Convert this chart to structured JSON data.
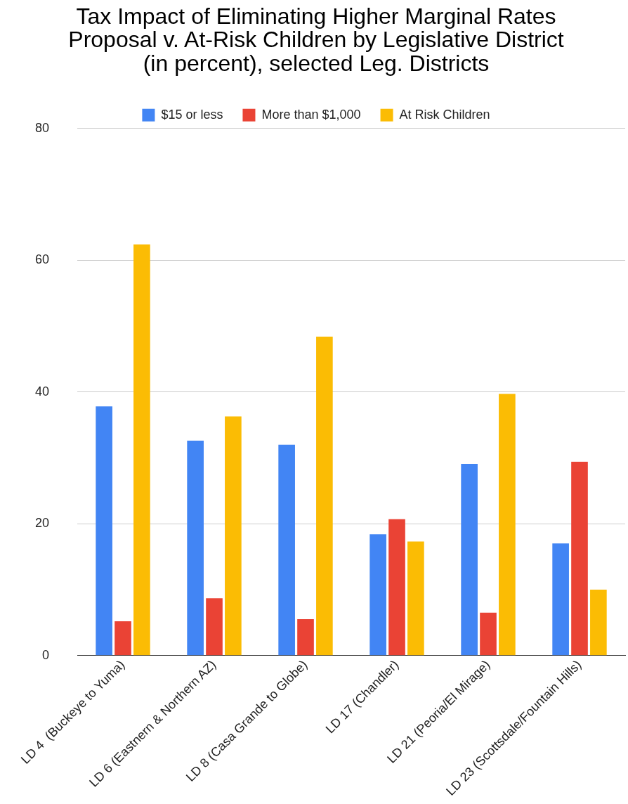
{
  "chart_data": {
    "type": "bar",
    "title": "Tax Impact of Eliminating Higher Marginal Rates\nProposal v. At-Risk Children by Legislative District\n(in percent), selected Leg. Districts",
    "categories": [
      "LD 4  (Buckeye to Yuma)",
      "LD 6 (Eastnern & Northern AZ)",
      "LD 8 (Casa Grande to Globe)",
      "LD 17 (Chandler)",
      "LD 21 (Peoria/El Mirage)",
      "LD 23 (Scottsdale/Fountain Hills)"
    ],
    "series": [
      {
        "name": "$15 or less",
        "color": "#4285f4",
        "values": [
          37.8,
          32.6,
          32.0,
          18.4,
          29.1,
          17.0
        ]
      },
      {
        "name": "More than $1,000",
        "color": "#ea4335",
        "values": [
          5.2,
          8.7,
          5.5,
          20.7,
          6.5,
          29.4
        ]
      },
      {
        "name": "At Risk Children",
        "color": "#fbbc04",
        "values": [
          62.4,
          36.3,
          48.4,
          17.3,
          39.7,
          10.0
        ]
      }
    ],
    "ylim": [
      0,
      80
    ],
    "yticks": [
      0,
      20,
      40,
      60,
      80
    ],
    "grid": "y",
    "legend": "top"
  }
}
